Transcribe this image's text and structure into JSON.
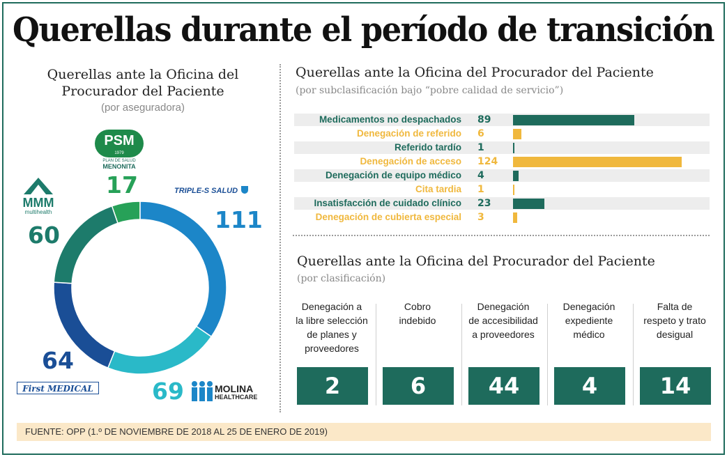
{
  "title": "Querellas durante el período de transición",
  "source": "FUENTE: OPP (1.º DE NOVIEMBRE DE 2018 AL 25 DE ENERO DE 2019)",
  "colors": {
    "teal": "#1e6b5c",
    "gold": "#f0b83d",
    "green": "#27a158",
    "cyan": "#2ab9c8",
    "blue": "#1c86c8",
    "navy": "#1a4e96",
    "dark_teal": "#1d7b6b"
  },
  "logos": {
    "psm": {
      "mark": "PSM",
      "year": "1979",
      "name_1": "PLAN DE SALUD",
      "name_2": "MENONITA"
    },
    "triples": {
      "name": "TRIPLE-S SALUD"
    },
    "mmm": {
      "mark": "MMM",
      "name": "multihealth"
    },
    "first": {
      "name": "First MEDICAL"
    },
    "molina": {
      "name_1": "MOLINA",
      "name_2": "HEALTHCARE"
    }
  },
  "chart_data": [
    {
      "type": "pie",
      "title": "Querellas ante la Oficina del Procurador del Paciente",
      "subtitle": "(por aseguradora)",
      "categories": [
        "PSM",
        "Triple-S",
        "Molina",
        "First Medical",
        "MMM"
      ],
      "values": [
        17,
        111,
        69,
        64,
        60
      ],
      "value_labels": [
        "17",
        "111",
        "69",
        "64",
        "60"
      ],
      "colors": [
        "#27a158",
        "#1c86c8",
        "#2ab9c8",
        "#1a4e96",
        "#1d7b6b"
      ]
    },
    {
      "type": "bar",
      "title": "Querellas ante la Oficina del Procurador del Paciente",
      "subtitle": "(por subclasificación bajo “pobre calidad de servicio”)",
      "categories": [
        "Medicamentos no despachados",
        "Denegación de referido",
        "Referido tardío",
        "Denegación de acceso",
        "Denegación de equipo médico",
        "Cita tardia",
        "Insatisfacción de cuidado clínico",
        "Denegación de cubierta especial"
      ],
      "values": [
        89,
        6,
        1,
        124,
        4,
        1,
        23,
        3
      ],
      "value_labels": [
        "89",
        "6",
        "1",
        "124",
        "4",
        "1",
        "23",
        "3"
      ],
      "colors": [
        "#1e6b5c",
        "#f0b83d",
        "#1e6b5c",
        "#f0b83d",
        "#1e6b5c",
        "#f0b83d",
        "#1e6b5c",
        "#f0b83d"
      ]
    },
    {
      "type": "table",
      "title": "Querellas ante la Oficina del Procurador del Paciente",
      "subtitle": "(por clasificación)",
      "categories": [
        "Denegación a la libre selección de planes y proveedores",
        "Cobro indebido",
        "Denegación de accesibilidad a proveedores",
        "Denegación expediente médico",
        "Falta de respeto y trato desigual"
      ],
      "label_lines": [
        [
          "Denegación a",
          "la libre selección",
          "de planes y",
          "proveedores"
        ],
        [
          "Cobro",
          "indebido"
        ],
        [
          "Denegación",
          "de accesibilidad",
          "a proveedores"
        ],
        [
          "Denegación",
          "expediente",
          "médico"
        ],
        [
          "Falta de",
          "respeto y trato",
          "desigual"
        ]
      ],
      "values": [
        2,
        6,
        44,
        4,
        14
      ],
      "value_labels": [
        "2",
        "6",
        "44",
        "4",
        "14"
      ]
    }
  ]
}
